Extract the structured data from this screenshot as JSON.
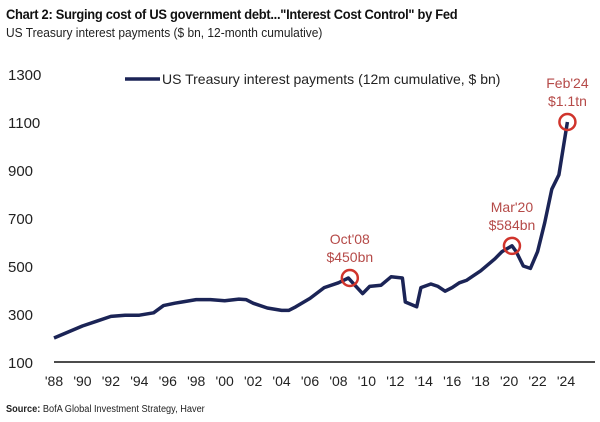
{
  "chart_data": {
    "type": "line",
    "title": "Chart 2: Surging cost of US government debt...\"Interest Cost Control\" by Fed",
    "subtitle": "US Treasury interest payments ($ bn, 12-month cumulative)",
    "source_label": "Source:",
    "source_text": "BofA Global Investment Strategy, Haver",
    "ylim": [
      100,
      1300
    ],
    "yticks": [
      "1300",
      "1100",
      "900",
      "700",
      "500",
      "300",
      "100"
    ],
    "xlim": [
      1988,
      2026
    ],
    "xticks": [
      "'88",
      "'90",
      "'92",
      "'94",
      "'96",
      "'98",
      "'00",
      "'02",
      "'04",
      "'06",
      "'08",
      "'10",
      "'12",
      "'14",
      "'16",
      "'18",
      "'20",
      "'22",
      "'24"
    ],
    "grid": false,
    "legend_position": "top",
    "series": [
      {
        "name": "US Treasury interest payments (12m cumulative, $ bn)",
        "color": "#1b2456",
        "x": [
          1988,
          1989,
          1990,
          1991,
          1992,
          1993,
          1994,
          1995,
          1995.7,
          1996.5,
          1997,
          1998,
          1999,
          2000,
          2001,
          2001.5,
          2002,
          2003,
          2004,
          2004.5,
          2005,
          2006,
          2007,
          2008,
          2008.7,
          2009,
          2009.7,
          2010.2,
          2011,
          2011.7,
          2012.5,
          2012.7,
          2013.5,
          2013.8,
          2014.5,
          2015,
          2015.5,
          2016,
          2016.5,
          2017,
          2017.5,
          2018,
          2019,
          2019.5,
          2020.2,
          2020.5,
          2021,
          2021.5,
          2022,
          2022.5,
          2023,
          2023.5,
          2024.1
        ],
        "y": [
          200,
          225,
          250,
          270,
          290,
          295,
          295,
          305,
          335,
          345,
          350,
          360,
          360,
          355,
          362,
          360,
          345,
          325,
          315,
          315,
          330,
          365,
          410,
          430,
          450,
          430,
          385,
          415,
          420,
          455,
          450,
          350,
          330,
          410,
          425,
          415,
          395,
          410,
          430,
          440,
          460,
          480,
          530,
          560,
          584,
          560,
          500,
          490,
          560,
          680,
          820,
          880,
          1100
        ]
      }
    ],
    "annotations": [
      {
        "x": 2008.8,
        "y": 450,
        "line1": "Oct'08",
        "line2": "$450bn"
      },
      {
        "x": 2020.2,
        "y": 584,
        "line1": "Mar'20",
        "line2": "$584bn"
      },
      {
        "x": 2024.1,
        "y": 1100,
        "line1": "Feb'24",
        "line2": "$1.1tn"
      }
    ],
    "annotation_color": "#d0342c",
    "annotation_text_color": "#b54a48"
  }
}
